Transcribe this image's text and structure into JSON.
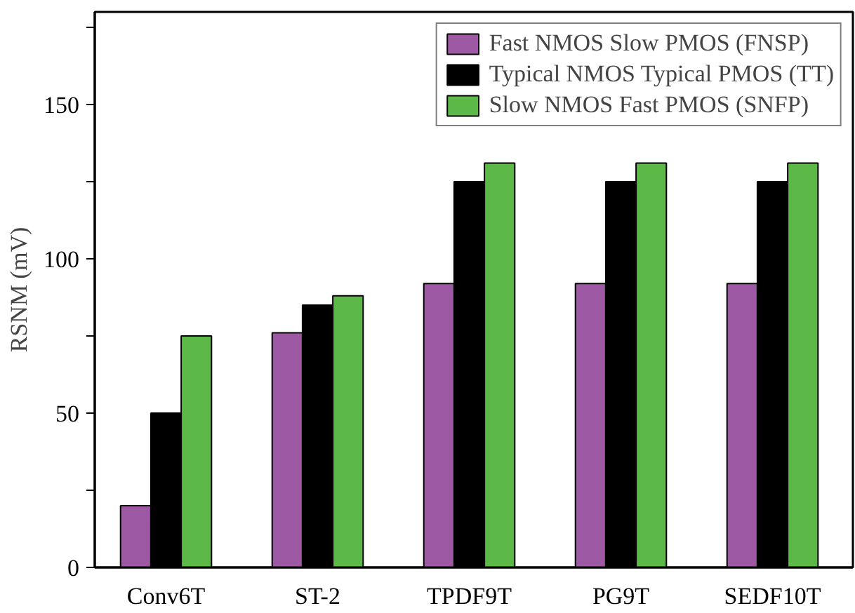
{
  "chart_data": {
    "type": "bar",
    "ylabel": "RSNM (mV)",
    "categories": [
      "Conv6T",
      "ST-2",
      "TPDF9T",
      "PG9T",
      "SEDF10T"
    ],
    "series": [
      {
        "name": "Fast NMOS Slow PMOS (FNSP)",
        "color": "#9e59a5",
        "values": [
          20,
          76,
          92,
          92,
          92
        ]
      },
      {
        "name": "Typical NMOS Typical PMOS (TT)",
        "color": "#000000",
        "values": [
          50,
          85,
          125,
          125,
          125
        ]
      },
      {
        "name": "Slow NMOS Fast PMOS (SNFP)",
        "color": "#5db947",
        "values": [
          75,
          88,
          131,
          131,
          131
        ]
      }
    ],
    "ylim": [
      0,
      180
    ],
    "yticks": [
      0,
      {
        "value": 25,
        "label": null
      },
      50,
      {
        "value": 75,
        "label": null
      },
      100,
      {
        "value": 125,
        "label": null
      },
      150,
      {
        "value": 175,
        "label": null
      }
    ],
    "grid": false,
    "legend": "top right"
  }
}
